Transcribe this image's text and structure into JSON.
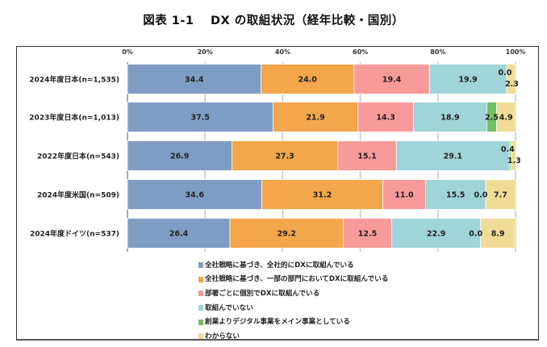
{
  "chart_data": {
    "type": "bar",
    "orientation": "horizontal",
    "stacked": true,
    "title": "図表 1-1　 DX の取組状況（経年比較・国別）",
    "xlabel": "",
    "ylabel": "",
    "xlim": [
      0,
      100
    ],
    "x_ticks": [
      "0%",
      "20%",
      "40%",
      "60%",
      "80%",
      "100%"
    ],
    "grid": true,
    "legend_position": "bottom",
    "categories": [
      "2024年度日本(n=1,535)",
      "2023年度日本(n=1,013)",
      "2022年度日本(n=543)",
      "2024年度米国(n=509)",
      "2024年度ドイツ(n=537)"
    ],
    "series": [
      {
        "name": "全社戦略に基づき、全社的にDXに取組んでいる",
        "color": "#7f9dc4",
        "values": [
          34.4,
          37.5,
          26.9,
          34.6,
          26.4
        ],
        "labels": [
          "34.4",
          "37.5",
          "26.9",
          "34.6",
          "26.4"
        ]
      },
      {
        "name": "全社戦略に基づき、一部の部門においてDXに取組んでいる",
        "color": "#f3a64a",
        "values": [
          24.0,
          21.9,
          27.3,
          31.2,
          29.2
        ],
        "labels": [
          "24.0",
          "21.9",
          "27.3",
          "31.2",
          "29.2"
        ]
      },
      {
        "name": "部署ごとに個別でDXに取組んでいる",
        "color": "#f99a9a",
        "values": [
          19.4,
          14.3,
          15.1,
          11.0,
          12.5
        ],
        "labels": [
          "19.4",
          "14.3",
          "15.1",
          "11.0",
          "12.5"
        ]
      },
      {
        "name": "取組んでいない",
        "color": "#9fd4d8",
        "values": [
          19.9,
          18.9,
          29.1,
          15.5,
          22.9
        ],
        "labels": [
          "19.9",
          "18.9",
          "29.1",
          "15.5",
          "22.9"
        ]
      },
      {
        "name": "創業よりデジタル事業をメイン事業としている",
        "color": "#74c064",
        "values": [
          0.0,
          2.5,
          0.4,
          0.0,
          0.0
        ],
        "labels": [
          "0.0",
          "2.5",
          "0.4",
          "0.0",
          "0.0"
        ]
      },
      {
        "name": "わからない",
        "color": "#f0dc96",
        "values": [
          2.3,
          4.9,
          1.3,
          7.7,
          8.9
        ],
        "labels": [
          "2.3",
          "4.9",
          "1.3",
          "7.7",
          "8.9"
        ]
      }
    ]
  }
}
